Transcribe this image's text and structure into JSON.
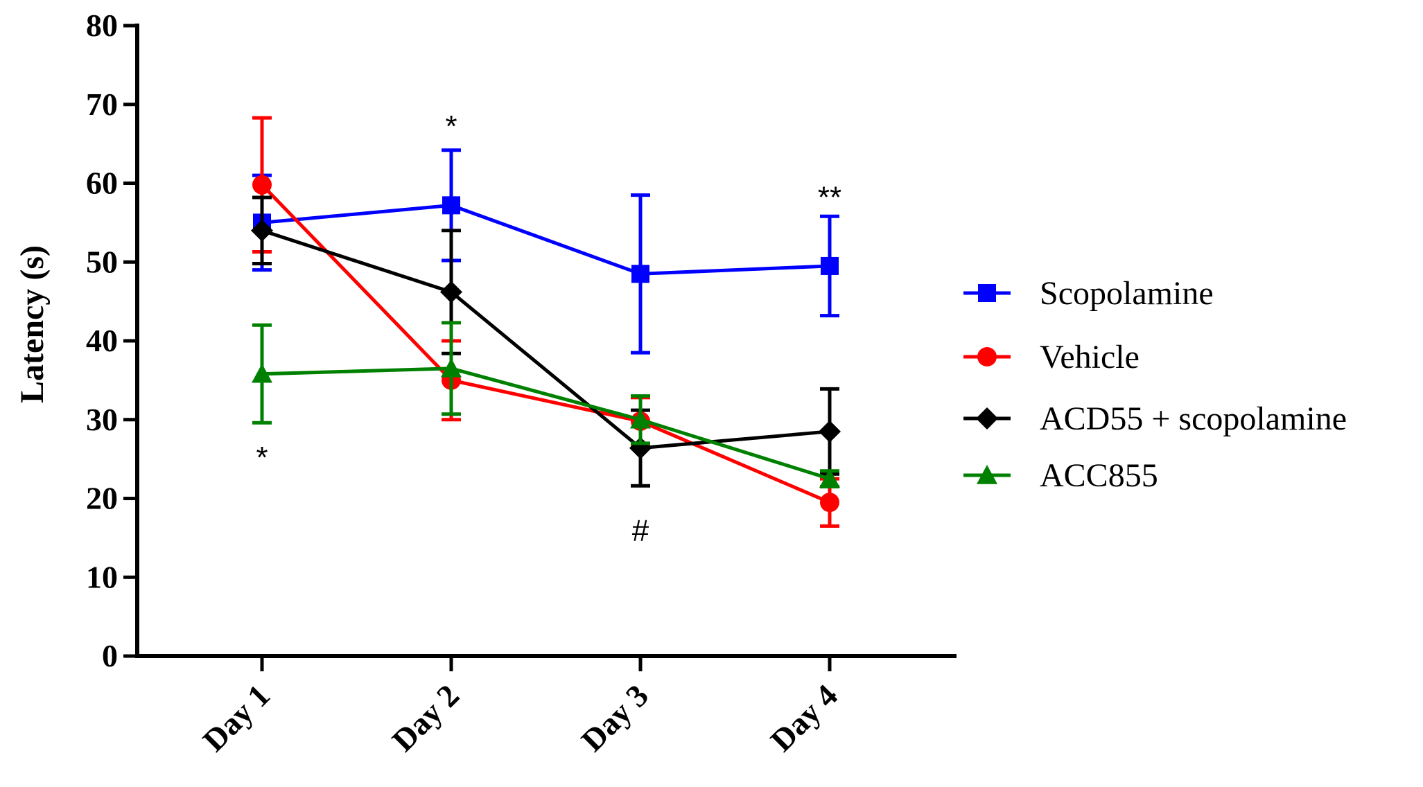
{
  "chart_data": {
    "type": "line",
    "title": "",
    "xlabel": "",
    "ylabel": "Latency (s)",
    "categories": [
      "Day 1",
      "Day 2",
      "Day 3",
      "Day 4"
    ],
    "ylim": [
      0,
      80
    ],
    "yticks": [
      0,
      10,
      20,
      30,
      40,
      50,
      60,
      70,
      80
    ],
    "grid": false,
    "legend_position": "right",
    "series": [
      {
        "name": "Scopolamine",
        "color": "#0000ff",
        "marker": "square",
        "values": [
          55.0,
          57.2,
          48.5,
          49.5
        ],
        "errors": [
          6.0,
          7.0,
          10.0,
          6.3
        ]
      },
      {
        "name": "Vehicle",
        "color": "#ff0000",
        "marker": "circle",
        "values": [
          59.8,
          35.0,
          29.8,
          19.5
        ],
        "errors": [
          8.5,
          5.0,
          3.0,
          3.0
        ]
      },
      {
        "name": "ACD55 + scopolamine",
        "color": "#000000",
        "marker": "diamond",
        "values": [
          54.0,
          46.2,
          26.4,
          28.5
        ],
        "errors": [
          4.2,
          7.8,
          4.8,
          5.4
        ]
      },
      {
        "name": "ACC855",
        "color": "#008000",
        "marker": "triangle",
        "values": [
          35.8,
          36.5,
          30.0,
          22.5
        ],
        "errors": [
          6.2,
          5.8,
          3.0,
          1.0
        ]
      }
    ],
    "annotations": [
      {
        "text": "*",
        "category": "Day 1",
        "y": 25.5
      },
      {
        "text": "*",
        "category": "Day 2",
        "y": 67.5
      },
      {
        "text": "#",
        "category": "Day 3",
        "y": 16.2
      },
      {
        "text": "**",
        "category": "Day 4",
        "y": 58.5
      }
    ]
  }
}
